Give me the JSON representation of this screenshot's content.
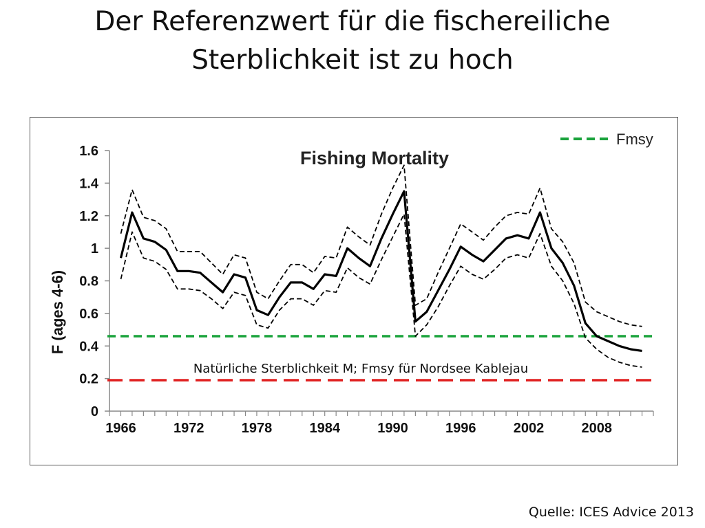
{
  "slide": {
    "title_line1": "Der Referenzwert für die fischereiliche",
    "title_line2": "Sterblichkeit ist zu hoch",
    "source": "Quelle: ICES Advice 2013"
  },
  "chart_data": {
    "type": "line",
    "title": "Fishing Mortality",
    "xlabel": "",
    "ylabel": "F (ages 4-6)",
    "xlim": [
      1965,
      2013
    ],
    "ylim": [
      0,
      1.6
    ],
    "x_ticks": [
      "1966",
      "1972",
      "1978",
      "1984",
      "1990",
      "1996",
      "2002",
      "2008"
    ],
    "y_ticks": [
      "0",
      "0.2",
      "0.4",
      "0.6",
      "0.8",
      "1",
      "1.2",
      "1.4",
      "1.6"
    ],
    "grid": false,
    "legend_position": "top-right",
    "annotation": "Natürliche Sterblichkeit M;  Fmsy für Nordsee Kablejau",
    "x": [
      1966,
      1967,
      1968,
      1969,
      1970,
      1971,
      1972,
      1973,
      1974,
      1975,
      1976,
      1977,
      1978,
      1979,
      1980,
      1981,
      1982,
      1983,
      1984,
      1985,
      1986,
      1987,
      1988,
      1989,
      1990,
      1991,
      1992,
      1993,
      1994,
      1995,
      1996,
      1997,
      1998,
      1999,
      2000,
      2001,
      2002,
      2003,
      2004,
      2005,
      2006,
      2007,
      2008,
      2009,
      2010,
      2011,
      2012
    ],
    "series": [
      {
        "style": "solid",
        "color": "#000000",
        "values": [
          0.94,
          1.22,
          1.06,
          1.04,
          0.99,
          0.86,
          0.86,
          0.85,
          0.79,
          0.73,
          0.84,
          0.82,
          0.62,
          0.59,
          0.7,
          0.79,
          0.79,
          0.75,
          0.84,
          0.83,
          1.0,
          0.94,
          0.89,
          1.06,
          1.21,
          1.35,
          0.55,
          0.61,
          0.74,
          0.87,
          1.01,
          0.96,
          0.92,
          0.99,
          1.06,
          1.08,
          1.06,
          1.22,
          1.0,
          0.91,
          0.77,
          0.54,
          0.46,
          0.43,
          0.4,
          0.38,
          0.37
        ]
      },
      {
        "style": "dashed",
        "color": "#000000",
        "values": [
          1.09,
          1.36,
          1.19,
          1.17,
          1.12,
          0.98,
          0.98,
          0.98,
          0.91,
          0.84,
          0.96,
          0.94,
          0.73,
          0.69,
          0.8,
          0.9,
          0.9,
          0.85,
          0.95,
          0.94,
          1.13,
          1.07,
          1.02,
          1.21,
          1.37,
          1.51,
          0.65,
          0.69,
          0.85,
          1.0,
          1.15,
          1.1,
          1.05,
          1.13,
          1.2,
          1.22,
          1.21,
          1.37,
          1.12,
          1.04,
          0.91,
          0.67,
          0.61,
          0.58,
          0.55,
          0.53,
          0.52
        ]
      },
      {
        "style": "dashed",
        "color": "#000000",
        "values": [
          0.81,
          1.1,
          0.94,
          0.92,
          0.87,
          0.75,
          0.75,
          0.74,
          0.69,
          0.63,
          0.73,
          0.71,
          0.53,
          0.51,
          0.62,
          0.69,
          0.69,
          0.65,
          0.74,
          0.73,
          0.88,
          0.82,
          0.78,
          0.93,
          1.07,
          1.21,
          0.46,
          0.53,
          0.64,
          0.77,
          0.89,
          0.84,
          0.81,
          0.87,
          0.94,
          0.96,
          0.94,
          1.09,
          0.89,
          0.8,
          0.66,
          0.45,
          0.38,
          0.33,
          0.3,
          0.28,
          0.27
        ]
      }
    ],
    "reference_lines": [
      {
        "name": "Fmsy",
        "value": 0.46,
        "color": "#1aa33c",
        "in_legend": true
      },
      {
        "value": 0.19,
        "color": "#e02020",
        "in_legend": false
      }
    ]
  }
}
